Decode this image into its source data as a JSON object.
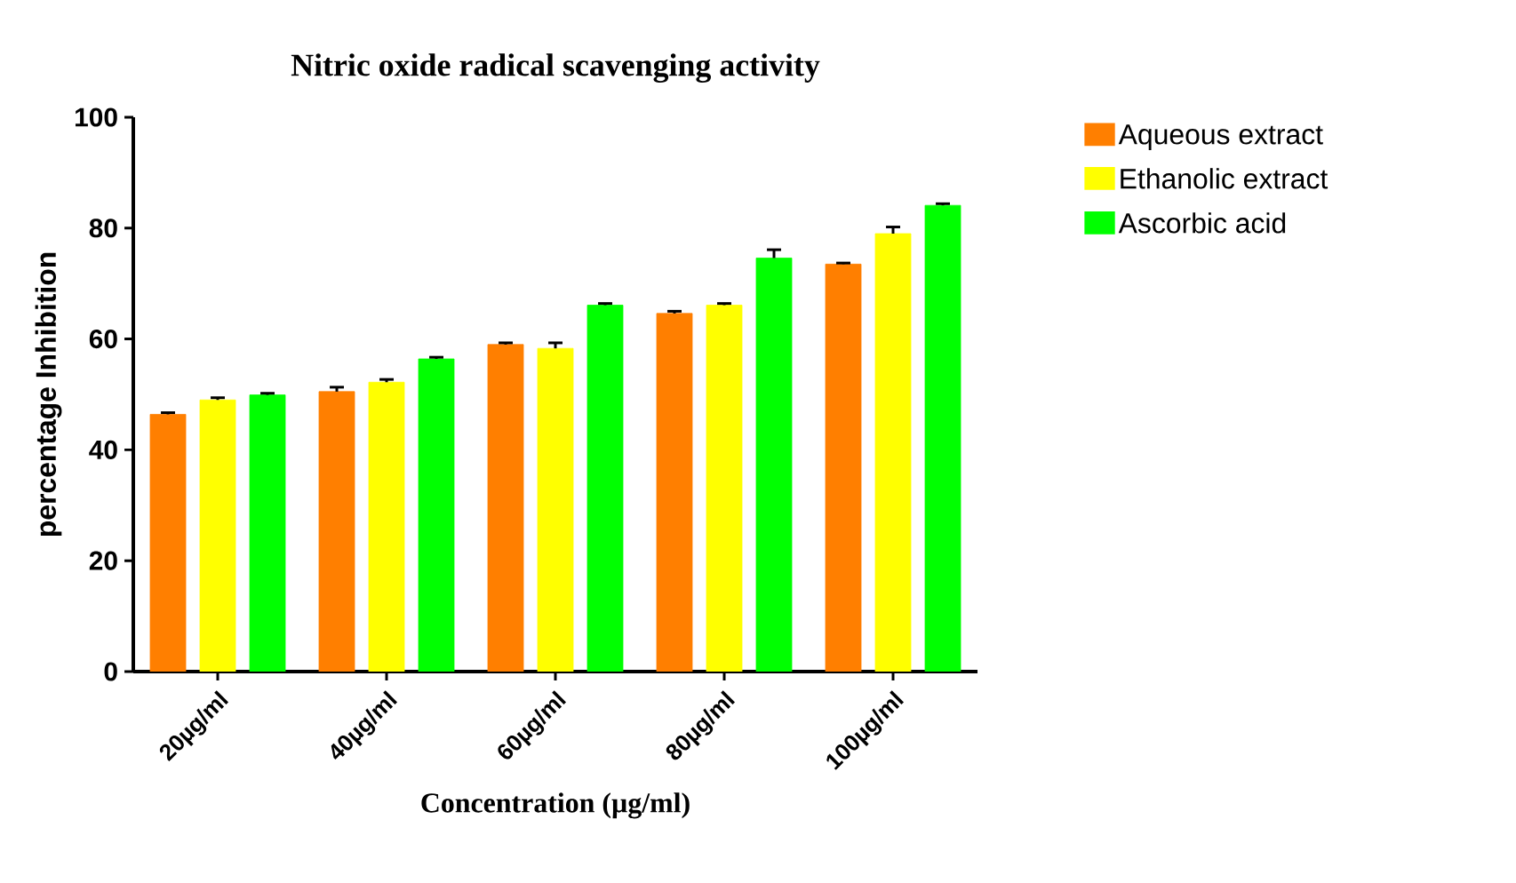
{
  "chart_data": {
    "type": "bar",
    "title": "Nitric oxide radical scavenging activity",
    "xlabel": "Concentration (µg/ml)",
    "ylabel": "percentage Inhibition",
    "categories": [
      "20µg/ml",
      "40µg/ml",
      "60µg/ml",
      "80µg/ml",
      "100µg/ml"
    ],
    "series": [
      {
        "name": "Aqueous extract",
        "color": "#ff7f00",
        "values": [
          46.4,
          50.5,
          59,
          64.6,
          73.5
        ],
        "errors": [
          0.3,
          0.8,
          0.3,
          0.4,
          0.2
        ]
      },
      {
        "name": "Ethanolic extract",
        "color": "#ffff00",
        "values": [
          49,
          52.2,
          58.3,
          66.1,
          79
        ],
        "errors": [
          0.4,
          0.5,
          1,
          0.3,
          1.2
        ]
      },
      {
        "name": "Ascorbic acid",
        "color": "#00ff00",
        "values": [
          49.9,
          56.4,
          66.1,
          74.6,
          84.1
        ],
        "errors": [
          0.3,
          0.3,
          0.3,
          1.5,
          0.3
        ]
      }
    ],
    "ylim": [
      0,
      100
    ],
    "yticks": [
      0,
      20,
      40,
      60,
      80,
      100
    ],
    "legend": "right"
  }
}
